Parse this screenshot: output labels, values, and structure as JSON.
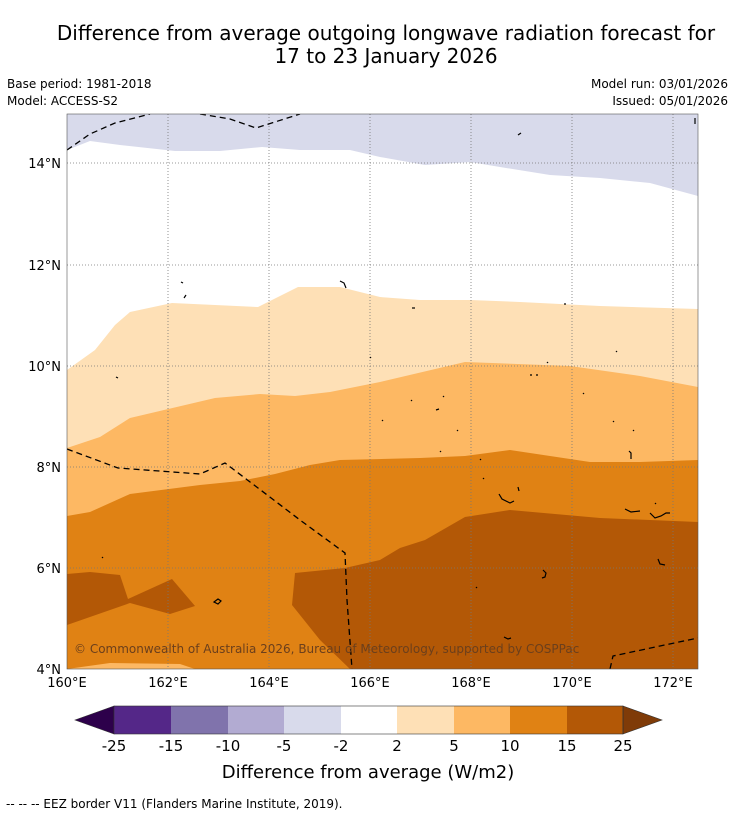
{
  "title": {
    "line1": "Difference from average outgoing longwave radiation forecast for",
    "line2": "17 to 23 January 2026"
  },
  "meta": {
    "base_period": "Base period: 1981-2018",
    "model": "Model: ACCESS-S2",
    "model_run": "Model run: 03/01/2026",
    "issued": "Issued: 05/01/2026"
  },
  "map": {
    "lat_labels": [
      "14°N",
      "12°N",
      "10°N",
      "8°N",
      "6°N",
      "4°N"
    ],
    "lon_labels": [
      "160°E",
      "162°E",
      "164°E",
      "166°E",
      "168°E",
      "170°E",
      "172°E"
    ],
    "copyright": "© Commonwealth of Australia 2026, Bureau of Meteorology, supported by COSPPac"
  },
  "legend": {
    "ticks": [
      "-25",
      "-15",
      "-10",
      "-5",
      "-2",
      "2",
      "5",
      "10",
      "15",
      "25"
    ],
    "colors": [
      "#2d004b",
      "#542788",
      "#8073ac",
      "#b2abd2",
      "#d8daeb",
      "#ffffff",
      "#fee0b6",
      "#fdb863",
      "#e08214",
      "#b35806",
      "#7f3b08"
    ],
    "label": "Difference from average (W/m2)"
  },
  "footnote": "--  --  -- EEZ border V11 (Flanders Marine Institute, 2019)."
}
